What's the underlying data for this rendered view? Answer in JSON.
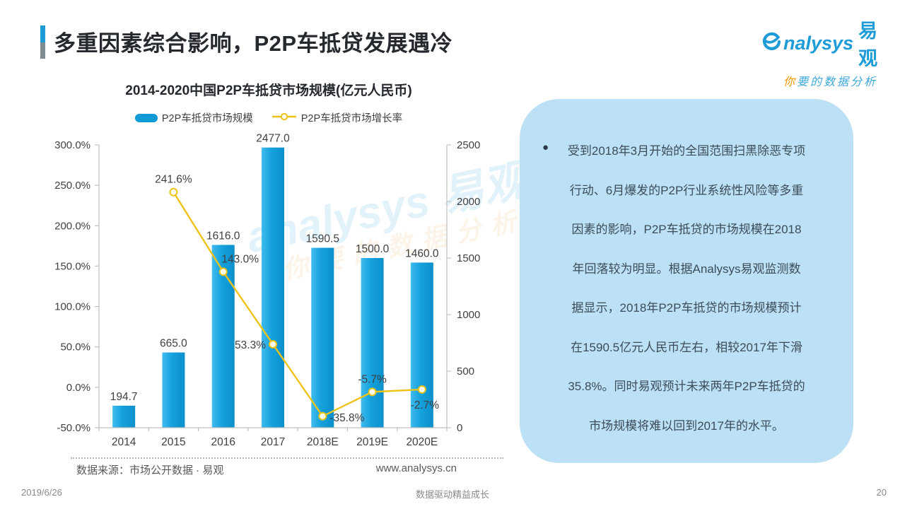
{
  "slide": {
    "title": "多重因素综合影响，P2P车抵贷发展遇冷",
    "date": "2019/6/26",
    "footer_slogan": "数据驱动精益成长",
    "page_number": "20",
    "source": "数据来源：市场公开数据 · 易观",
    "website": "www.analysys.cn"
  },
  "logo": {
    "brand_en": "nalysys",
    "brand_cn": "易观",
    "tagline_first": "你",
    "tagline_rest": "要的数据分析"
  },
  "insight_panel": {
    "bullet": "●",
    "lines": [
      "受到2018年3月开始的全国范围扫黑除恶专项",
      "行动、6月爆发的P2P行业系统性风险等多重",
      "因素的影响，P2P车抵贷的市场规模在2018",
      "年回落较为明显。根据Analysys易观监测数",
      "据显示，2018年P2P车抵贷的市场规模预计",
      "在1590.5亿元人民币左右，相较2017年下滑",
      "35.8%。同时易观预计未来两年P2P车抵贷的",
      "市场规模将难以回到2017年的水平。"
    ]
  },
  "watermark": {
    "line1": "analysys 易观",
    "line2": "你要的数据分析"
  },
  "chart_data": {
    "type": "bar",
    "subtype": "bar+line combo, dual axis",
    "title": "2014-2020中国P2P车抵贷市场规模(亿元人民币)",
    "categories": [
      "2014",
      "2015",
      "2016",
      "2017",
      "2018E",
      "2019E",
      "2020E"
    ],
    "series": [
      {
        "name": "P2P车抵贷市场规模",
        "type": "bar",
        "axis": "right",
        "values": [
          194.7,
          665.0,
          1616.0,
          2477.0,
          1590.5,
          1500.0,
          1460.0
        ],
        "labels": [
          "194.7",
          "665.0",
          "1616.0",
          "2477.0",
          "1590.5",
          "1500.0",
          "1460.0"
        ],
        "color": "#119AD6"
      },
      {
        "name": "P2P车抵贷市场增长率",
        "type": "line",
        "axis": "left",
        "values": [
          null,
          241.6,
          143.0,
          53.3,
          -35.8,
          -5.7,
          -2.7
        ],
        "labels": [
          "",
          "241.6%",
          "143.0%",
          "53.3%",
          "-35.8%",
          "-5.7%",
          "-2.7%"
        ],
        "color": "#EEC319"
      }
    ],
    "left_axis": {
      "unit": "%",
      "min": -50,
      "max": 300,
      "ticks": [
        "300.0%",
        "250.0%",
        "200.0%",
        "150.0%",
        "100.0%",
        "50.0%",
        "0.0%",
        "-50.0%"
      ],
      "tick_values": [
        300,
        250,
        200,
        150,
        100,
        50,
        0,
        -50
      ]
    },
    "right_axis": {
      "unit": "亿元人民币",
      "min": 0,
      "max": 2500,
      "ticks": [
        "2500",
        "2000",
        "1500",
        "1000",
        "500",
        "0"
      ],
      "tick_values": [
        2500,
        2000,
        1500,
        1000,
        500,
        0
      ]
    },
    "grid": "off",
    "legend_position": "top"
  },
  "colors": {
    "accent_blue": "#1E9CD8",
    "accent_gray": "#7F8B93",
    "bar_blue": "#119AD6",
    "bar_gradient_light": "#3FBCEF",
    "line_yellow": "#EEC319",
    "panel_bg": "#BCE0F5",
    "axis_gray": "#C0C0C0",
    "text_dark": "#25292e",
    "footer_gray": "#8a8a8a"
  }
}
